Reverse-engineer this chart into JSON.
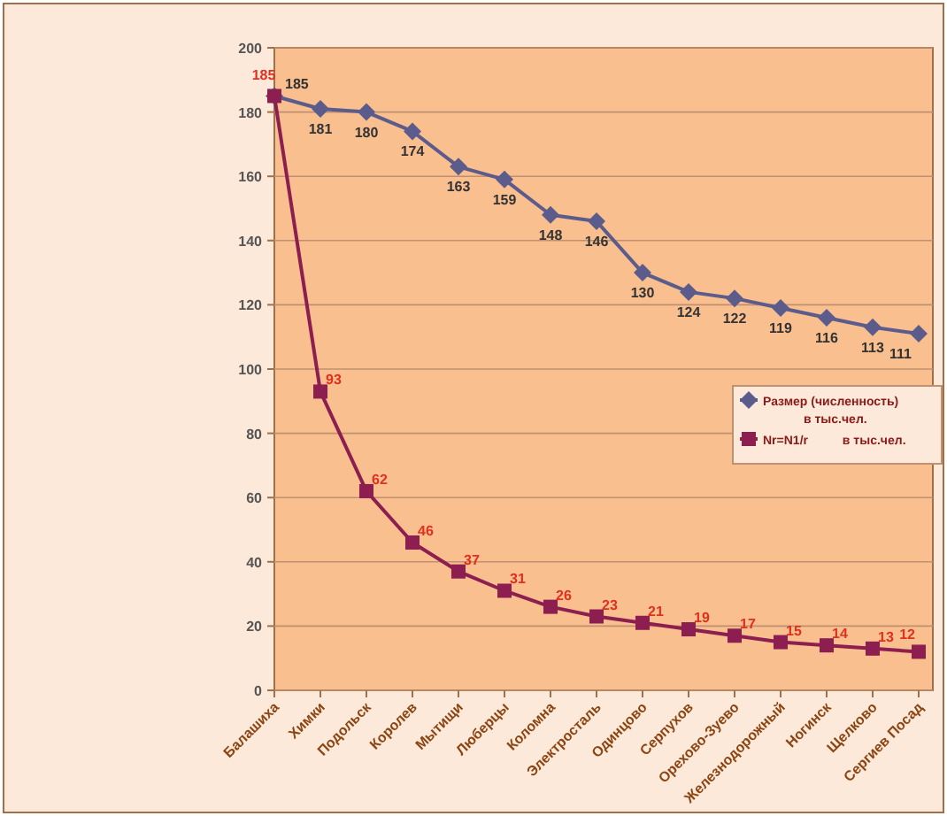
{
  "chart_data": {
    "type": "line",
    "categories": [
      "Балашиха",
      "Химки",
      "Подольск",
      "Королев",
      "Мытищи",
      "Люберцы",
      "Коломна",
      "Электросталь",
      "Одинцово",
      "Серпухов",
      "Орехово-Зуево",
      "Железнодорожный",
      "Ногинск",
      "Щелково",
      "Сергиев Посад"
    ],
    "series": [
      {
        "name": "Размер (численность)\nв тыс.чел.",
        "color": "#5b5b8c",
        "marker": "diamond",
        "values": [
          185,
          181,
          180,
          174,
          163,
          159,
          148,
          146,
          130,
          124,
          122,
          119,
          116,
          113,
          111
        ]
      },
      {
        "name": "Nr=N1/r          в тыс.чел.",
        "color": "#8c1f4f",
        "marker": "square",
        "values": [
          185,
          93,
          62,
          46,
          37,
          31,
          26,
          23,
          21,
          19,
          17,
          15,
          14,
          13,
          12
        ]
      }
    ],
    "ylim": [
      0,
      200
    ],
    "yticks": [
      0,
      20,
      40,
      60,
      80,
      100,
      120,
      140,
      160,
      180,
      200
    ],
    "grid": "y",
    "legend": "right",
    "data_labels": true
  }
}
